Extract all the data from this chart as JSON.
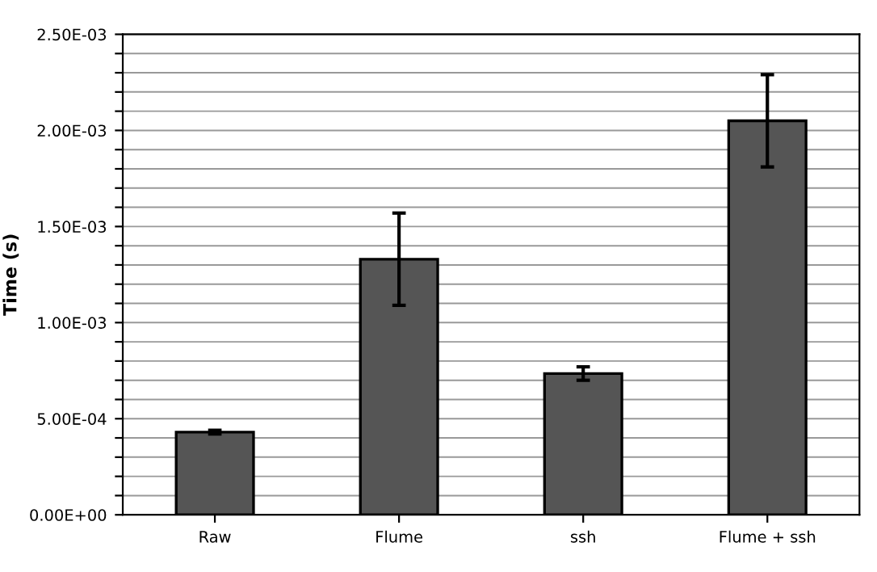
{
  "chart_data": {
    "type": "bar",
    "ylabel": "Time (s)",
    "categories": [
      "Raw",
      "Flume",
      "ssh",
      "Flume + ssh"
    ],
    "values": [
      0.00043,
      0.00133,
      0.000735,
      0.00205
    ],
    "errors": [
      1e-05,
      0.00024,
      3.5e-05,
      0.00024
    ],
    "color": "#555555",
    "ylim": [
      0,
      0.0025
    ],
    "yticks": [
      {
        "value": 0,
        "label": "0.00E+00"
      },
      {
        "value": 0.0001,
        "label": null
      },
      {
        "value": 0.0002,
        "label": null
      },
      {
        "value": 0.0003,
        "label": null
      },
      {
        "value": 0.0004,
        "label": null
      },
      {
        "value": 0.0005,
        "label": "5.00E-04"
      },
      {
        "value": 0.0006,
        "label": null
      },
      {
        "value": 0.0007,
        "label": null
      },
      {
        "value": 0.0008,
        "label": null
      },
      {
        "value": 0.0009,
        "label": null
      },
      {
        "value": 0.001,
        "label": "1.00E-03"
      },
      {
        "value": 0.0011,
        "label": null
      },
      {
        "value": 0.0012,
        "label": null
      },
      {
        "value": 0.0013,
        "label": null
      },
      {
        "value": 0.0014,
        "label": null
      },
      {
        "value": 0.0015,
        "label": "1.50E-03"
      },
      {
        "value": 0.0016,
        "label": null
      },
      {
        "value": 0.0017,
        "label": null
      },
      {
        "value": 0.0018,
        "label": null
      },
      {
        "value": 0.0019,
        "label": null
      },
      {
        "value": 0.002,
        "label": "2.00E-03"
      },
      {
        "value": 0.0021,
        "label": null
      },
      {
        "value": 0.0022,
        "label": null
      },
      {
        "value": 0.0023,
        "label": null
      },
      {
        "value": 0.0024,
        "label": null
      },
      {
        "value": 0.0025,
        "label": "2.50E-03"
      }
    ],
    "grid": "y",
    "legend": false
  }
}
